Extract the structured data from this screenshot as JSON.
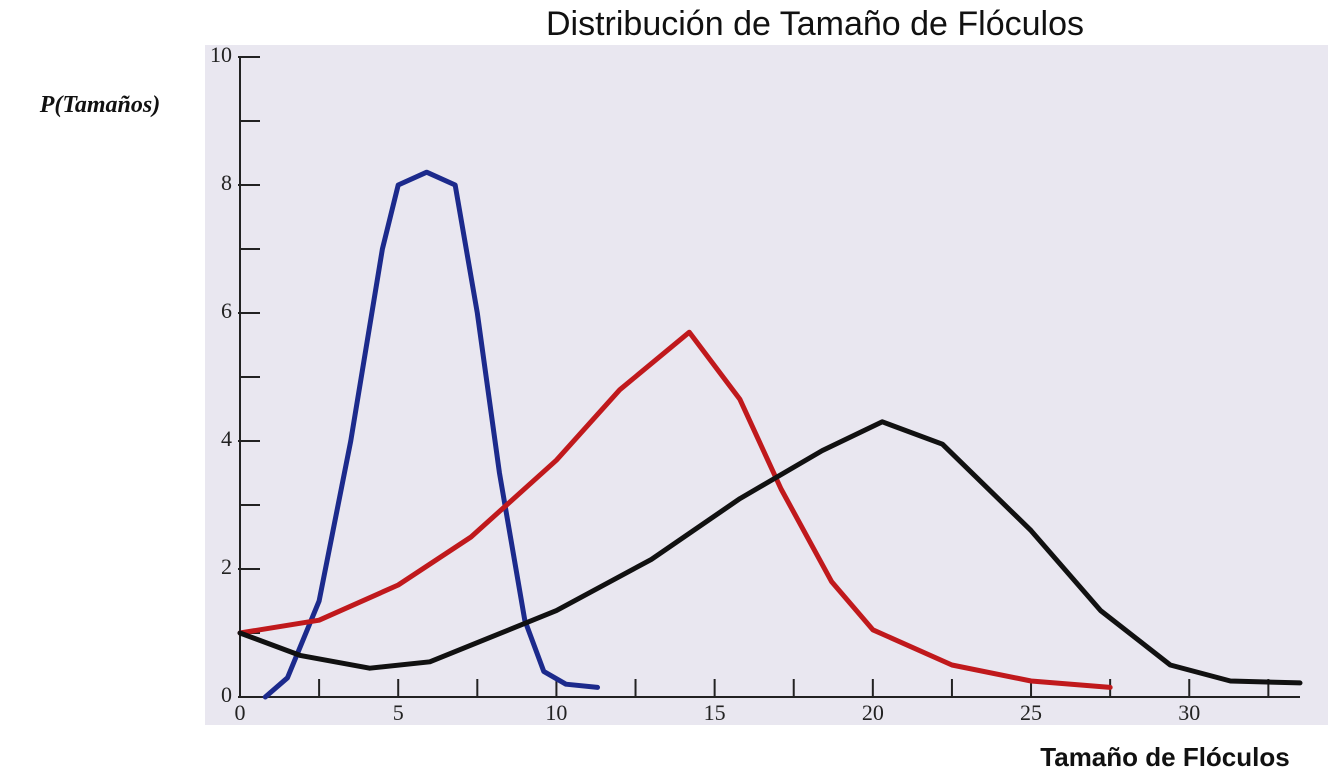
{
  "chart_data": {
    "type": "line",
    "title": "Distribución de Tamaño de Flóculos",
    "y_label": "P(Tamaños)",
    "x_label": "Tamaño de Flóculos",
    "xlim": [
      0,
      33.5
    ],
    "ylim": [
      0,
      10
    ],
    "xticks": [
      0,
      5,
      10,
      15,
      20,
      25,
      30
    ],
    "x_minor_ticks": [
      2.5,
      7.5,
      12.5,
      17.5,
      22.5,
      27.5,
      32.5
    ],
    "yticks": [
      0,
      2,
      4,
      6,
      8,
      10
    ],
    "y_minor_ticks": [
      1,
      3,
      5,
      7,
      9
    ],
    "series": [
      {
        "color": "#1c2a8c",
        "x": [
          0.8,
          1.5,
          2.5,
          3.5,
          4.5,
          5.0,
          5.9,
          6.8,
          7.5,
          8.2,
          9.0,
          9.6,
          10.3,
          11.3
        ],
        "values": [
          0,
          0.3,
          1.5,
          4,
          7,
          8,
          8.2,
          8,
          6,
          3.5,
          1.2,
          0.4,
          0.2,
          0.15
        ]
      },
      {
        "color": "#c0191c",
        "x": [
          0,
          2.5,
          5,
          7.3,
          10,
          12,
          14.2,
          15.8,
          17.1,
          18.7,
          20,
          22.5,
          25,
          27.5
        ],
        "values": [
          1.0,
          1.2,
          1.75,
          2.5,
          3.7,
          4.8,
          5.7,
          4.65,
          3.25,
          1.8,
          1.05,
          0.5,
          0.25,
          0.15
        ]
      },
      {
        "color": "#111111",
        "x": [
          0,
          1.9,
          4.1,
          6,
          10,
          13,
          15.8,
          18.4,
          20.3,
          22.2,
          25,
          27.2,
          29.4,
          31.3,
          33.5
        ],
        "values": [
          1.0,
          0.65,
          0.45,
          0.55,
          1.35,
          2.15,
          3.1,
          3.85,
          4.3,
          3.95,
          2.6,
          1.35,
          0.5,
          0.25,
          0.22
        ]
      }
    ]
  }
}
